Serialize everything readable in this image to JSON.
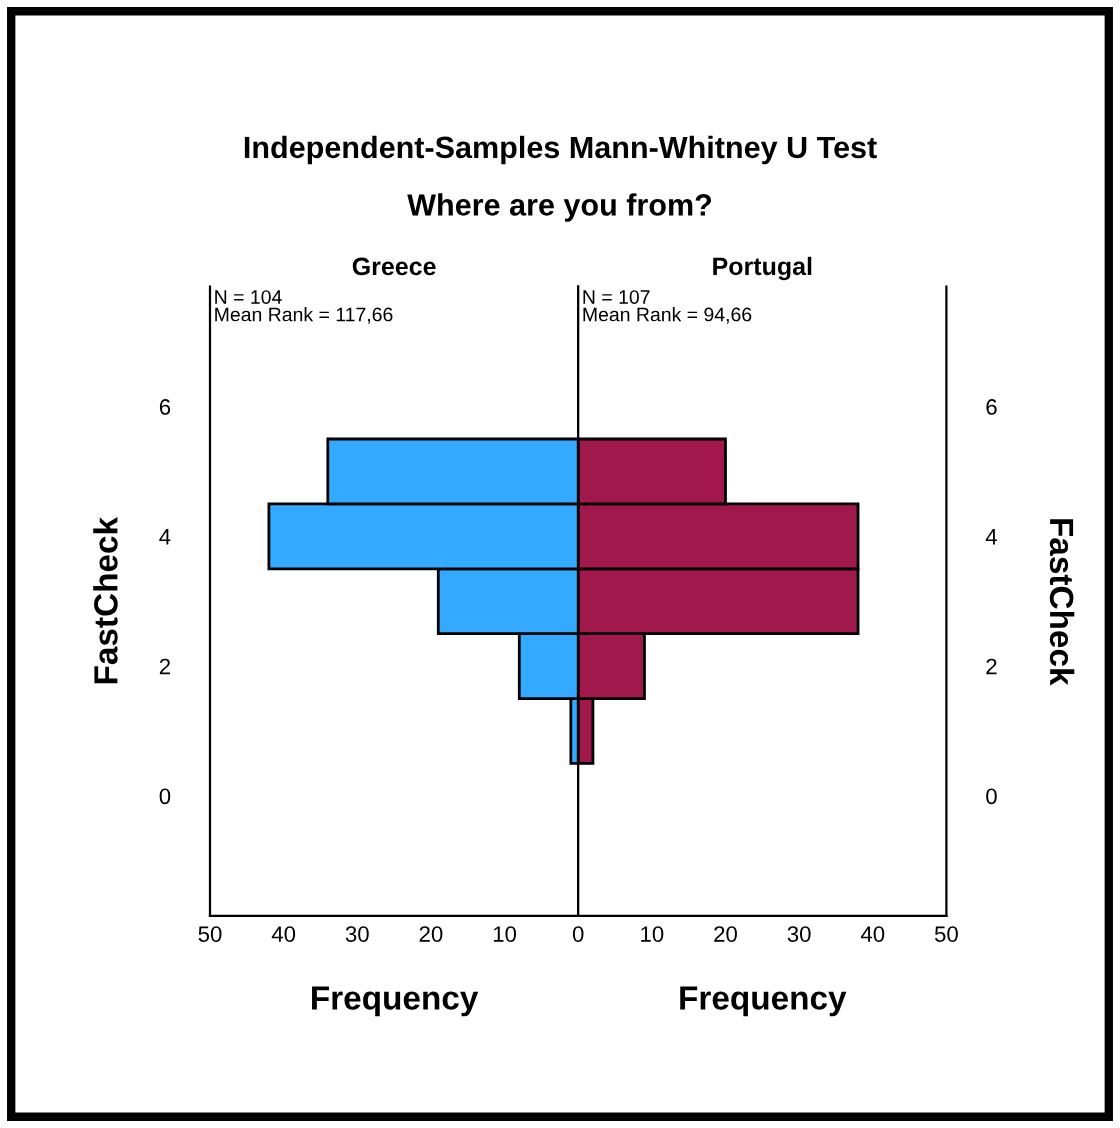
{
  "chart_data": [
    {
      "type": "histogram",
      "orientation": "horizontal",
      "title": "Independent-Samples Mann-Whitney U Test",
      "subtitle": "Where are you from?",
      "series": [
        {
          "name": "Greece",
          "color": "#33aaff",
          "values": [
            1,
            8,
            19,
            42,
            34
          ]
        }
      ],
      "bins": [
        0.5,
        1.5,
        2.5,
        3.5,
        4.5,
        5.5
      ],
      "xlim": [
        50,
        0
      ],
      "xticks": [
        50,
        40,
        30,
        20,
        10,
        0
      ],
      "ylim": [
        -1.85,
        7.85
      ],
      "yticks": [
        0,
        2,
        4,
        6
      ],
      "xlabel": "Frequency",
      "ylabel": "FastCheck",
      "annotations": [
        "N = 104\nMean Rank = 117,66"
      ],
      "grid": false,
      "legend": false
    },
    {
      "type": "histogram",
      "orientation": "horizontal",
      "series": [
        {
          "name": "Portugal",
          "color": "#a0184c",
          "values": [
            2,
            9,
            38,
            38,
            20
          ]
        }
      ],
      "bins": [
        0.5,
        1.5,
        2.5,
        3.5,
        4.5,
        5.5
      ],
      "xlim": [
        0,
        50
      ],
      "xticks": [
        10,
        20,
        30,
        40,
        50
      ],
      "ylim": [
        -1.85,
        7.85
      ],
      "yticks": [
        0,
        2,
        4,
        6
      ],
      "xlabel": "Frequency",
      "ylabel": "FastCheck",
      "annotations": [
        "N = 107\nMean Rank = 94,66"
      ],
      "grid": false,
      "legend": false
    }
  ]
}
